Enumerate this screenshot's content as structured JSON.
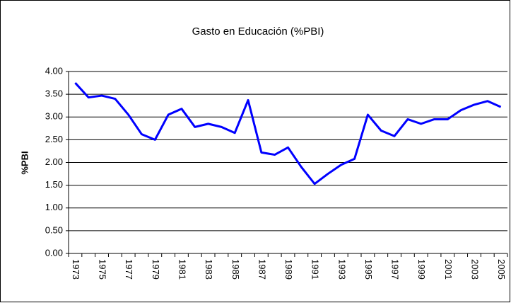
{
  "chart_data": {
    "type": "line",
    "title": "Gasto en Educación (%PBI)",
    "y_label": "%PBI",
    "categories": [
      "1973",
      null,
      "1975",
      null,
      "1977",
      null,
      "1979",
      null,
      "1981",
      null,
      "1983",
      null,
      "1985",
      null,
      "1987",
      null,
      "1989",
      null,
      "1991",
      null,
      "1993",
      null,
      "1995",
      null,
      "1997",
      null,
      "1999",
      null,
      "2001",
      null,
      "2003",
      null,
      "2005"
    ],
    "series": [
      {
        "name": "Gasto en Educación",
        "color": "#0000ff",
        "values": [
          3.75,
          3.43,
          3.47,
          3.4,
          3.05,
          2.62,
          2.5,
          3.05,
          3.18,
          2.78,
          2.85,
          2.78,
          2.65,
          3.37,
          2.22,
          2.17,
          2.33,
          1.9,
          1.53,
          1.75,
          1.95,
          2.08,
          3.05,
          2.7,
          2.58,
          2.95,
          2.85,
          2.95,
          2.95,
          3.15,
          3.27,
          3.35,
          3.22
        ]
      }
    ],
    "ylim": [
      0,
      4
    ],
    "yticks": [
      {
        "value": 0,
        "label": "0.00"
      },
      {
        "value": 0.5,
        "label": "0.50"
      },
      {
        "value": 1,
        "label": "1.00"
      },
      {
        "value": 1.5,
        "label": "1.50"
      },
      {
        "value": 2,
        "label": "2.00"
      },
      {
        "value": 2.5,
        "label": "2.50"
      },
      {
        "value": 3,
        "label": "3.00"
      },
      {
        "value": 3.5,
        "label": "3.50"
      },
      {
        "value": 4,
        "label": "4.00"
      }
    ],
    "grid": true
  }
}
